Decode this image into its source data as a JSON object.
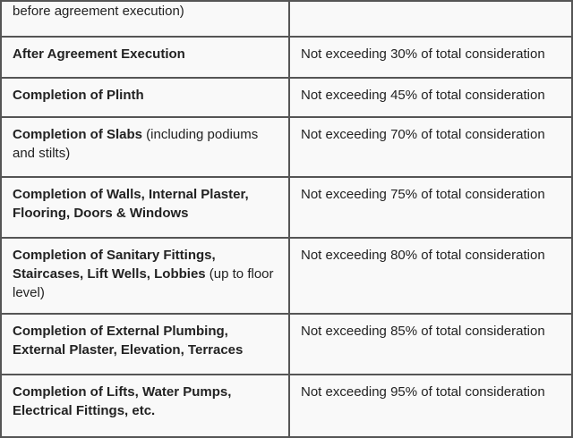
{
  "rows": [
    {
      "bold": "",
      "normal": "before agreement execution)",
      "value": ""
    },
    {
      "bold": "After Agreement Execution",
      "normal": "",
      "value": "Not exceeding 30% of total consideration"
    },
    {
      "bold": "Completion of Plinth",
      "normal": "",
      "value": "Not exceeding 45% of total consideration"
    },
    {
      "bold": "Completion of Slabs",
      "normal": " (including podiums and stilts)",
      "value": "Not exceeding 70% of total consideration"
    },
    {
      "bold": "Completion of Walls, Internal Plaster, Flooring, Doors & Windows",
      "normal": "",
      "value": "Not exceeding 75% of total consideration"
    },
    {
      "bold": "Completion of Sanitary Fittings, Staircases, Lift Wells, Lobbies",
      "normal": " (up to floor level)",
      "value": "Not exceeding 80% of total consideration"
    },
    {
      "bold": "Completion of External Plumbing, External Plaster, Elevation, Terraces",
      "normal": "",
      "value": "Not exceeding 85% of total consideration"
    },
    {
      "bold": "Completion of Lifts, Water Pumps, Electrical Fittings, etc.",
      "normal": "",
      "value": "Not exceeding 95% of total consideration"
    }
  ]
}
